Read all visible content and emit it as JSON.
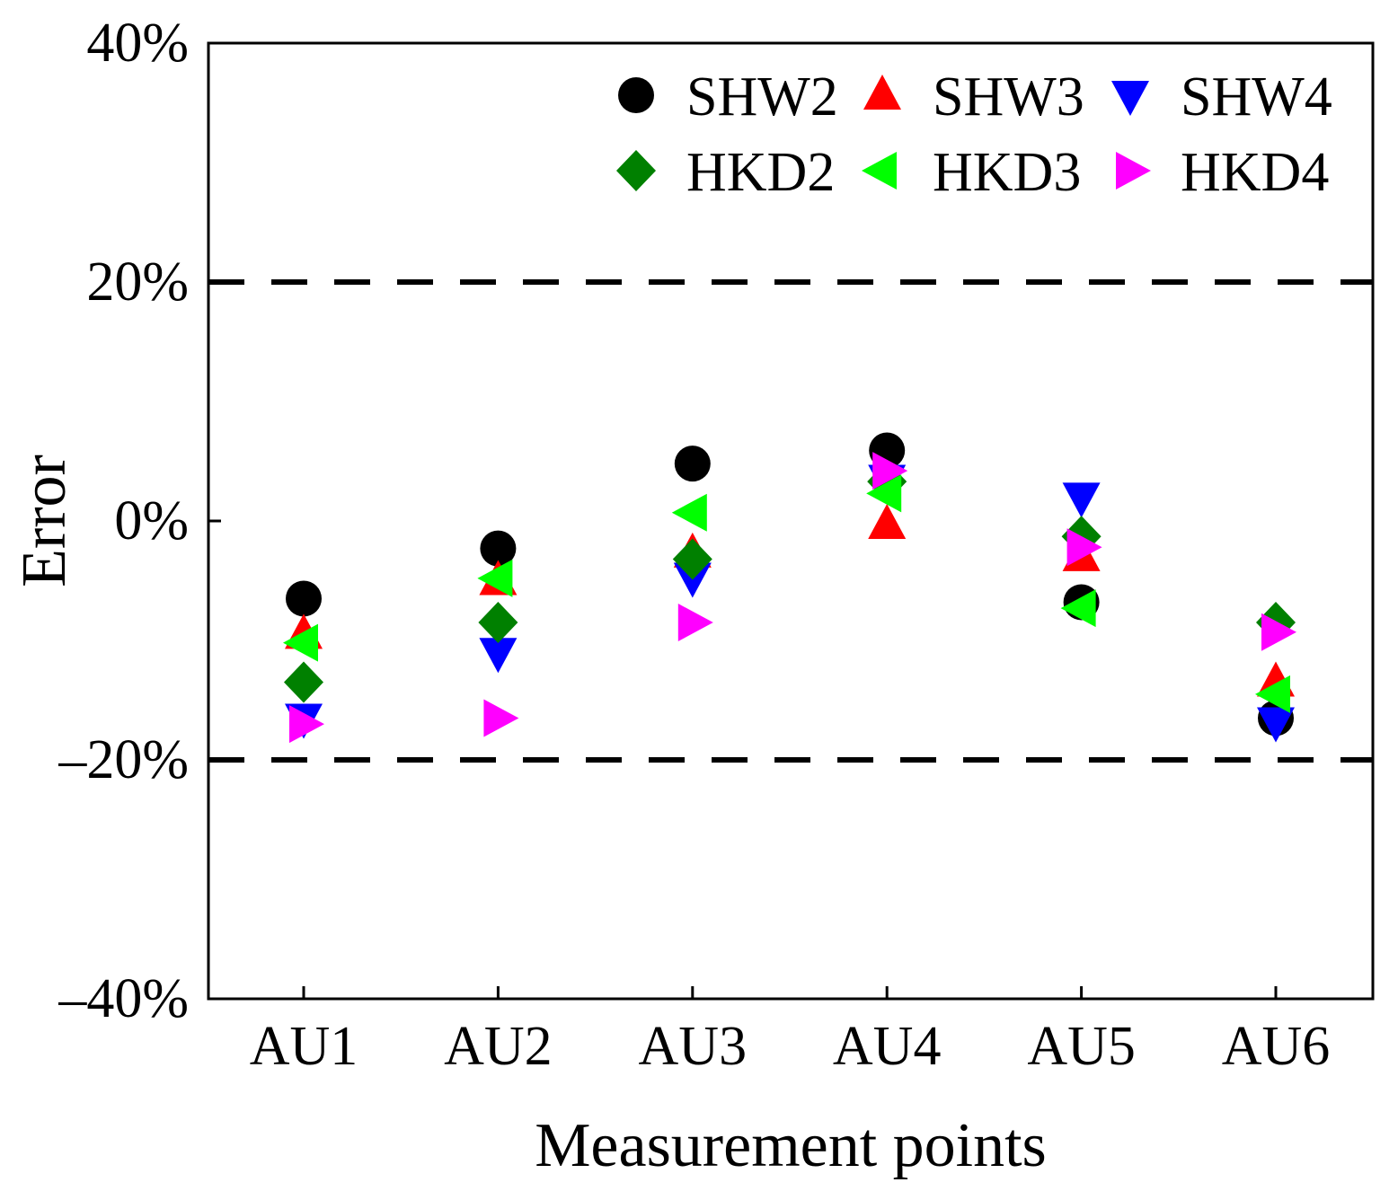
{
  "chart_data": {
    "type": "scatter",
    "title": "",
    "xlabel": "Measurement points",
    "ylabel": "Error",
    "categories": [
      "AU1",
      "AU2",
      "AU3",
      "AU4",
      "AU5",
      "AU6"
    ],
    "ylim": [
      -40,
      40
    ],
    "yticks": [
      {
        "value": -40,
        "label": "–40%"
      },
      {
        "value": -20,
        "label": "–20%"
      },
      {
        "value": 0,
        "label": "0%"
      },
      {
        "value": 20,
        "label": "20%"
      },
      {
        "value": 40,
        "label": "40%"
      }
    ],
    "reference_lines": [
      20,
      -20
    ],
    "grid": false,
    "legend_position": "top-right",
    "series": [
      {
        "name": "SHW2",
        "marker": "circle",
        "color": "#000000",
        "values": [
          -6.5,
          -2.3,
          4.8,
          5.9,
          -6.8,
          -16.5
        ]
      },
      {
        "name": "SHW3",
        "marker": "triangle-up",
        "color": "#ff0000",
        "values": [
          -9.5,
          -5.0,
          -2.7,
          -0.3,
          -3.0,
          -13.5
        ]
      },
      {
        "name": "SHW4",
        "marker": "triangle-down",
        "color": "#0000ff",
        "values": [
          -16.5,
          -11.0,
          -4.7,
          3.5,
          2.0,
          -16.8
        ]
      },
      {
        "name": "HKD2",
        "marker": "diamond",
        "color": "#008000",
        "values": [
          -13.5,
          -8.5,
          -3.2,
          3.3,
          -1.3,
          -8.5
        ]
      },
      {
        "name": "HKD3",
        "marker": "triangle-left",
        "color": "#00ff00",
        "values": [
          -10.2,
          -4.8,
          0.7,
          2.3,
          -7.3,
          -14.5
        ]
      },
      {
        "name": "HKD4",
        "marker": "triangle-right",
        "color": "#ff00ff",
        "values": [
          -17.0,
          -16.5,
          -8.5,
          4.2,
          -2.2,
          -9.3
        ]
      }
    ]
  }
}
